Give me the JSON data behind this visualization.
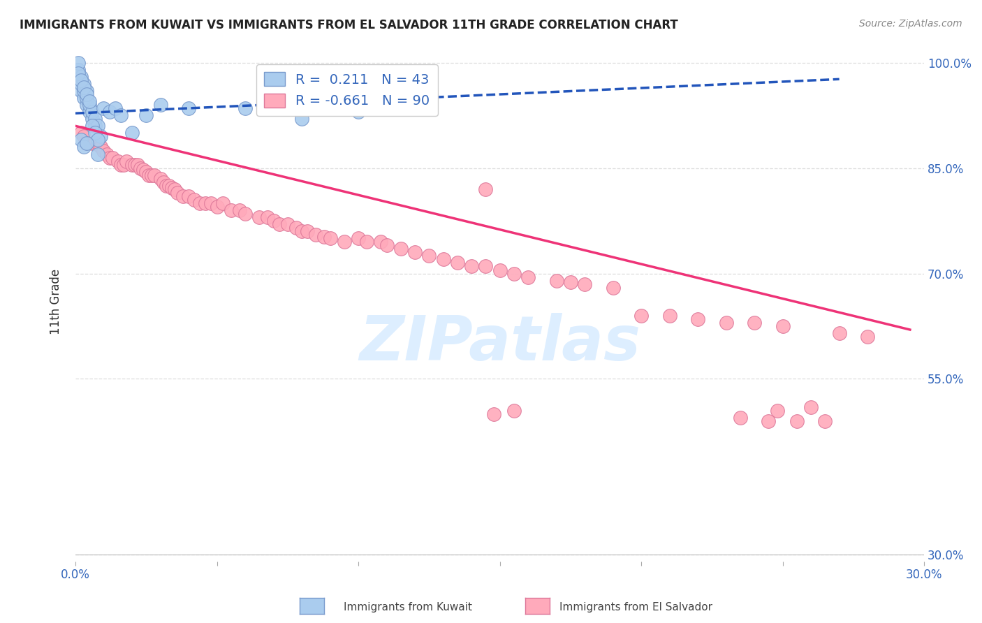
{
  "title": "IMMIGRANTS FROM KUWAIT VS IMMIGRANTS FROM EL SALVADOR 11TH GRADE CORRELATION CHART",
  "source": "Source: ZipAtlas.com",
  "ylabel": "11th Grade",
  "xlim": [
    0.0,
    0.3
  ],
  "ylim": [
    0.29,
    1.03
  ],
  "xticks": [
    0.0,
    0.05,
    0.1,
    0.15,
    0.2,
    0.25,
    0.3
  ],
  "xticklabels": [
    "0.0%",
    "",
    "",
    "",
    "",
    "",
    "30.0%"
  ],
  "yticks": [
    0.3,
    0.55,
    0.7,
    0.85,
    1.0
  ],
  "yticklabels": [
    "30.0%",
    "55.0%",
    "70.0%",
    "85.0%",
    "100.0%"
  ],
  "grid_color": "#dddddd",
  "background_color": "#ffffff",
  "kuwait_color": "#aaccee",
  "kuwait_edge_color": "#7799cc",
  "salvador_color": "#ffaabb",
  "salvador_edge_color": "#dd7799",
  "kuwait_line_color": "#2255bb",
  "salvador_line_color": "#ee3377",
  "kuwait_R": 0.211,
  "kuwait_N": 43,
  "salvador_R": -0.661,
  "salvador_N": 90,
  "kuwait_x": [
    0.001,
    0.001,
    0.001,
    0.002,
    0.002,
    0.002,
    0.003,
    0.003,
    0.003,
    0.004,
    0.004,
    0.004,
    0.005,
    0.005,
    0.006,
    0.006,
    0.007,
    0.007,
    0.008,
    0.009,
    0.01,
    0.012,
    0.014,
    0.016,
    0.001,
    0.002,
    0.003,
    0.004,
    0.005,
    0.006,
    0.007,
    0.008,
    0.002,
    0.003,
    0.004,
    0.008,
    0.02,
    0.025,
    0.03,
    0.04,
    0.06,
    0.08,
    0.1
  ],
  "kuwait_y": [
    0.975,
    0.99,
    1.0,
    0.96,
    0.97,
    0.98,
    0.95,
    0.96,
    0.97,
    0.94,
    0.95,
    0.96,
    0.93,
    0.94,
    0.92,
    0.93,
    0.91,
    0.92,
    0.91,
    0.895,
    0.935,
    0.93,
    0.935,
    0.925,
    0.985,
    0.975,
    0.965,
    0.955,
    0.945,
    0.91,
    0.9,
    0.89,
    0.89,
    0.88,
    0.885,
    0.87,
    0.9,
    0.925,
    0.94,
    0.935,
    0.935,
    0.92,
    0.93
  ],
  "salvador_x": [
    0.002,
    0.003,
    0.004,
    0.006,
    0.007,
    0.008,
    0.009,
    0.01,
    0.011,
    0.012,
    0.013,
    0.015,
    0.016,
    0.017,
    0.018,
    0.02,
    0.021,
    0.022,
    0.023,
    0.024,
    0.025,
    0.026,
    0.027,
    0.028,
    0.03,
    0.031,
    0.032,
    0.033,
    0.034,
    0.035,
    0.036,
    0.038,
    0.04,
    0.042,
    0.044,
    0.046,
    0.048,
    0.05,
    0.052,
    0.055,
    0.058,
    0.06,
    0.065,
    0.068,
    0.07,
    0.072,
    0.075,
    0.078,
    0.08,
    0.082,
    0.085,
    0.088,
    0.09,
    0.095,
    0.1,
    0.103,
    0.108,
    0.11,
    0.115,
    0.12,
    0.125,
    0.13,
    0.135,
    0.14,
    0.145,
    0.15,
    0.155,
    0.16,
    0.17,
    0.175,
    0.18,
    0.19,
    0.2,
    0.21,
    0.22,
    0.125,
    0.23,
    0.24,
    0.145,
    0.25,
    0.27,
    0.28,
    0.248,
    0.26,
    0.148,
    0.155,
    0.235,
    0.245,
    0.255,
    0.265
  ],
  "salvador_y": [
    0.9,
    0.895,
    0.885,
    0.885,
    0.885,
    0.885,
    0.88,
    0.875,
    0.87,
    0.865,
    0.865,
    0.86,
    0.855,
    0.855,
    0.86,
    0.855,
    0.855,
    0.855,
    0.85,
    0.848,
    0.845,
    0.84,
    0.84,
    0.84,
    0.835,
    0.83,
    0.825,
    0.825,
    0.822,
    0.82,
    0.815,
    0.81,
    0.81,
    0.805,
    0.8,
    0.8,
    0.8,
    0.795,
    0.8,
    0.79,
    0.79,
    0.785,
    0.78,
    0.78,
    0.775,
    0.77,
    0.77,
    0.765,
    0.76,
    0.76,
    0.755,
    0.752,
    0.75,
    0.745,
    0.75,
    0.745,
    0.745,
    0.74,
    0.735,
    0.73,
    0.725,
    0.72,
    0.715,
    0.71,
    0.71,
    0.705,
    0.7,
    0.695,
    0.69,
    0.688,
    0.685,
    0.68,
    0.64,
    0.64,
    0.635,
    0.95,
    0.63,
    0.63,
    0.82,
    0.625,
    0.615,
    0.61,
    0.505,
    0.51,
    0.5,
    0.505,
    0.495,
    0.49,
    0.49,
    0.49
  ],
  "watermark": "ZIPatlas",
  "watermark_color": "#ddeeff"
}
